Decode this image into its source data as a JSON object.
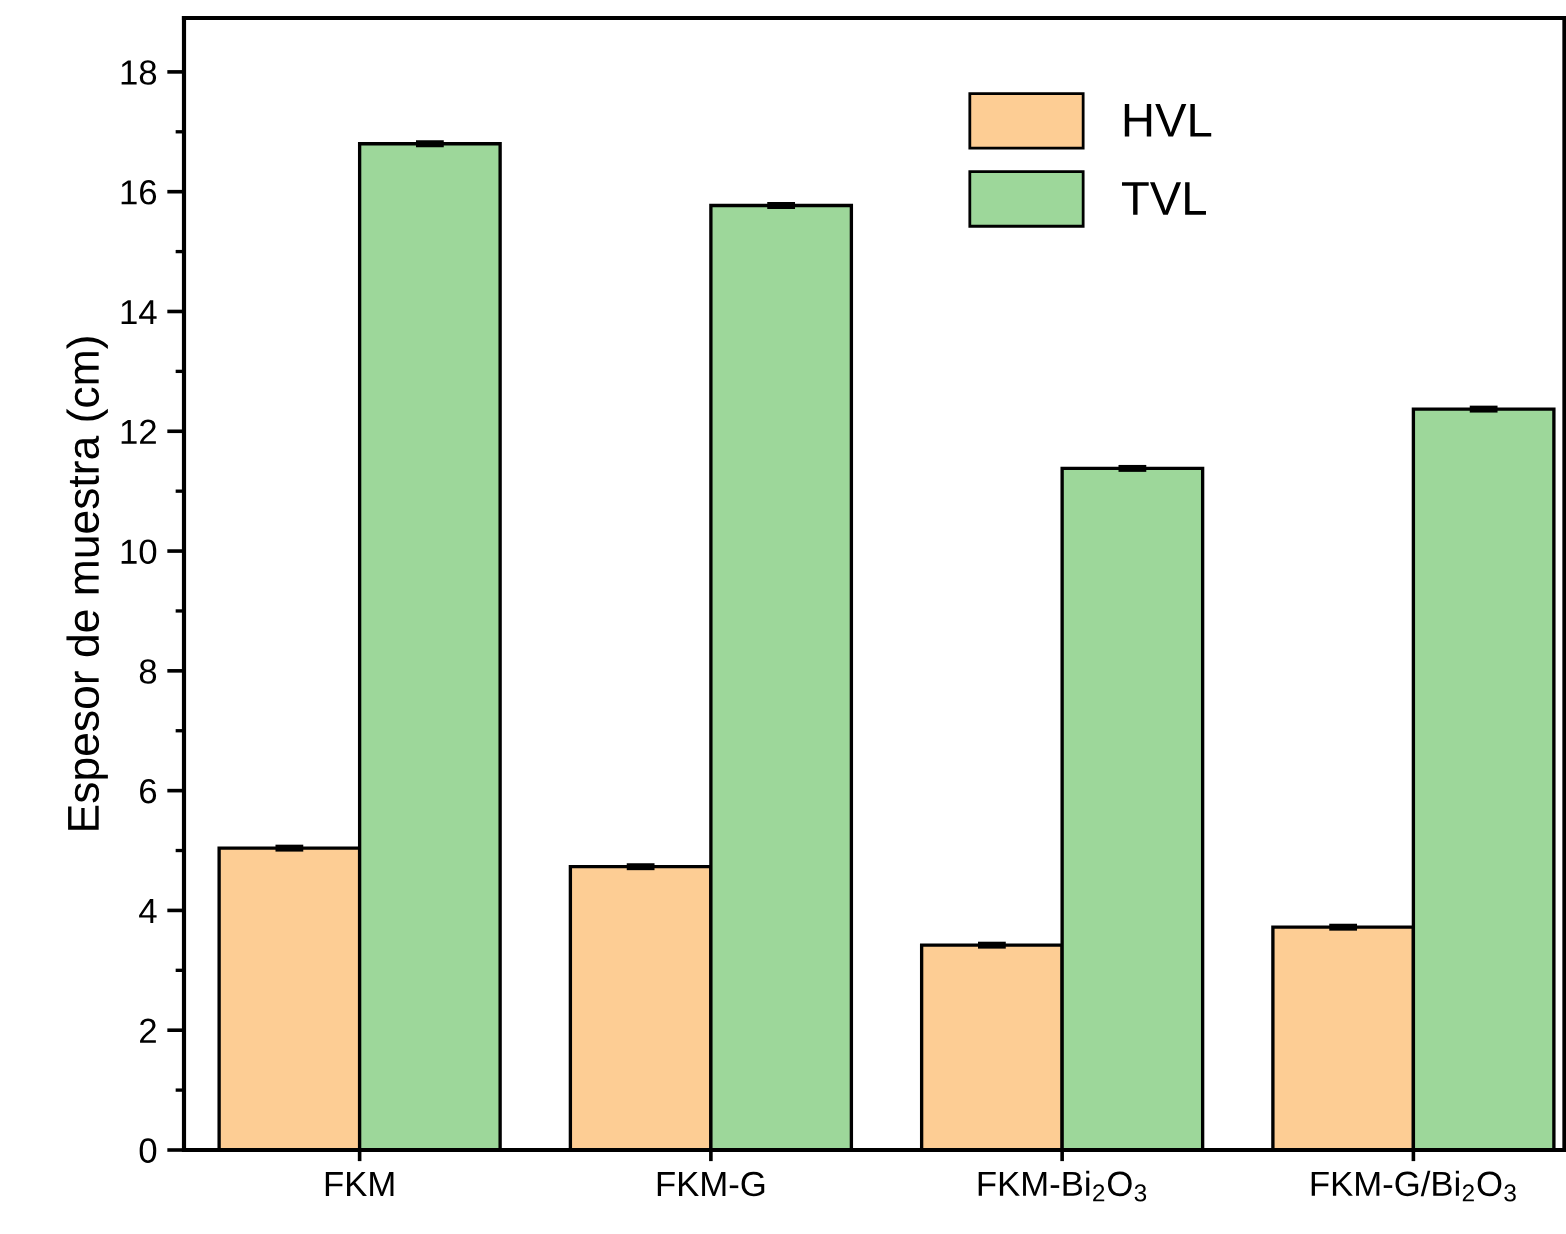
{
  "chart_data": {
    "type": "bar",
    "ylabel": "Espesor de muestra (cm)",
    "categories": [
      "FKM",
      "FKM-G",
      "FKM-Bi$_{2}$O$_{3}$",
      "FKM-G/Bi$_{2}$O$_{3}$"
    ],
    "series": [
      {
        "name": "HVL",
        "color": "#fdcd94",
        "values": [
          5.04,
          4.73,
          3.42,
          3.72
        ],
        "errors": [
          0.03,
          0.03,
          0.03,
          0.03
        ]
      },
      {
        "name": "TVL",
        "color": "#9dd79a",
        "values": [
          16.8,
          15.77,
          11.38,
          12.37
        ],
        "errors": [
          0.03,
          0.03,
          0.03,
          0.03
        ]
      }
    ],
    "ylim": [
      0,
      18.9
    ],
    "yticks": [
      0,
      2,
      4,
      6,
      8,
      10,
      12,
      14,
      16,
      18
    ],
    "grid": false,
    "legend": "top right"
  }
}
